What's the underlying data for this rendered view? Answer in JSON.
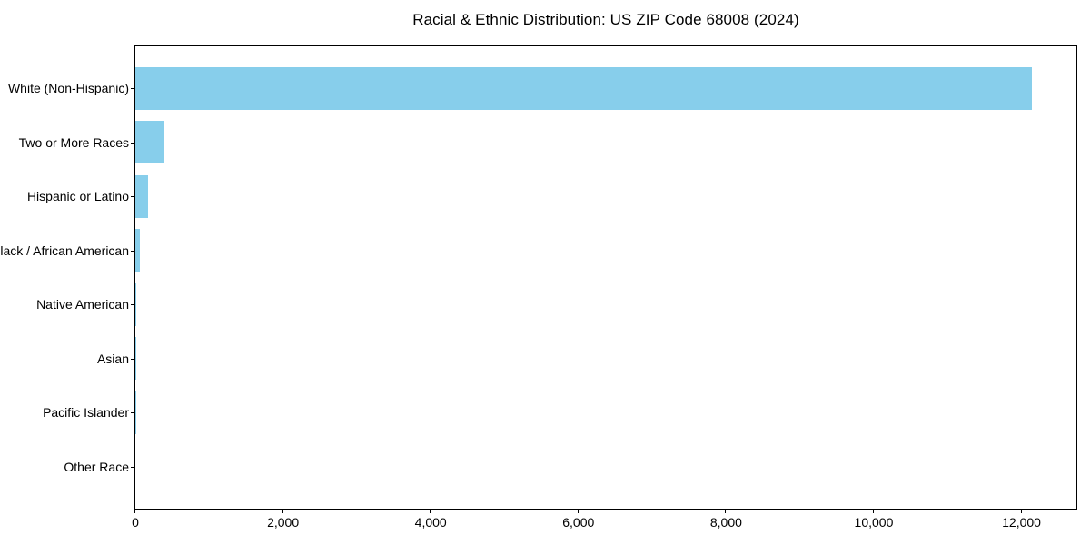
{
  "chart": {
    "bar_color": "#87ceeb",
    "axis_color": "#000000",
    "background_color": "#ffffff",
    "text_color": "#000000"
  },
  "chart_data": {
    "type": "bar",
    "orientation": "horizontal",
    "title": "Racial & Ethnic Distribution: US ZIP Code 68008 (2024)",
    "categories": [
      "White (Non-Hispanic)",
      "Two or More Races",
      "Hispanic or Latino",
      "Black / African American",
      "Native American",
      "Asian",
      "Pacific Islander",
      "Other Race"
    ],
    "values": [
      12160,
      400,
      170,
      58,
      12,
      9,
      2,
      0
    ],
    "xlabel": "",
    "ylabel": "",
    "xlim": [
      0,
      12768
    ],
    "x_ticks": [
      0,
      2000,
      4000,
      6000,
      8000,
      10000,
      12000
    ],
    "x_tick_labels": [
      "0",
      "2,000",
      "4,000",
      "6,000",
      "8,000",
      "10,000",
      "12,000"
    ],
    "grid": false,
    "legend": null,
    "bar_color": "#87ceeb"
  }
}
